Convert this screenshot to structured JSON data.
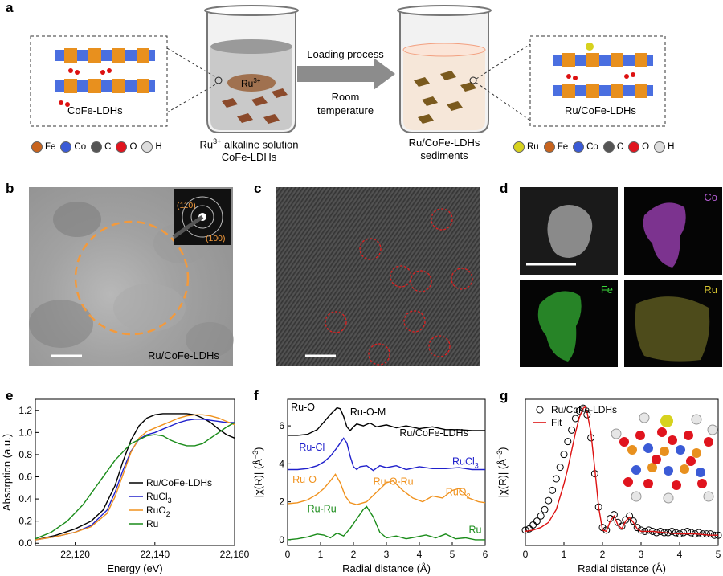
{
  "panel_labels": {
    "a": "a",
    "b": "b",
    "c": "c",
    "d": "d",
    "e": "e",
    "f": "f",
    "g": "g"
  },
  "panel_a": {
    "left_box_label": "CoFe-LDHs",
    "right_box_label": "Ru/CoFe-LDHs",
    "beaker1_ion": "Ru",
    "beaker1_ion_sup": "3+",
    "beaker1_caption_line1_pre": "Ru",
    "beaker1_caption_line1_sup": "3+",
    "beaker1_caption_line1_post": " alkaline solution",
    "beaker1_caption_line2": "CoFe-LDHs",
    "arrow_top": "Loading process",
    "arrow_bottom_line1": "Room",
    "arrow_bottom_line2": "temperature",
    "beaker2_caption_line1": "Ru/CoFe-LDHs",
    "beaker2_caption_line2": "sediments",
    "legend_left": [
      {
        "label": "Fe",
        "color": "#c8641e"
      },
      {
        "label": "Co",
        "color": "#3b5bd6"
      },
      {
        "label": "C",
        "color": "#555555"
      },
      {
        "label": "O",
        "color": "#e0141e"
      },
      {
        "label": "H",
        "color": "#dddddd"
      }
    ],
    "legend_right": [
      {
        "label": "Ru",
        "color": "#d7d21e"
      },
      {
        "label": "Fe",
        "color": "#c8641e"
      },
      {
        "label": "Co",
        "color": "#3b5bd6"
      },
      {
        "label": "C",
        "color": "#555555"
      },
      {
        "label": "O",
        "color": "#e0141e"
      },
      {
        "label": "H",
        "color": "#dddddd"
      }
    ]
  },
  "panel_b": {
    "caption": "Ru/CoFe-LDHs",
    "saed_1": "(110)",
    "saed_2": "(100)"
  },
  "panel_d": {
    "co": "Co",
    "fe": "Fe",
    "ru": "Ru"
  },
  "chart_data": [
    {
      "panel": "e",
      "type": "line",
      "xlabel": "Energy (eV)",
      "ylabel": "Absorption (a.u.)",
      "xlim": [
        22110,
        22160
      ],
      "ylim": [
        -0.02,
        1.3
      ],
      "xticks": [
        "22,120",
        "22,140",
        "22,160"
      ],
      "xtick_values": [
        22120,
        22140,
        22160
      ],
      "yticks": [
        "0.0",
        "0.2",
        "0.4",
        "0.6",
        "0.8",
        "1.0",
        "1.2"
      ],
      "ytick_values": [
        0,
        0.2,
        0.4,
        0.6,
        0.8,
        1.0,
        1.2
      ],
      "legend": "lower-right",
      "series": [
        {
          "name": "Ru/CoFe-LDHs",
          "color": "#000000",
          "x": [
            22110,
            22115,
            22120,
            22124,
            22127,
            22130,
            22132,
            22134,
            22136,
            22138,
            22140,
            22142,
            22144,
            22146,
            22148,
            22150,
            22152,
            22154,
            22156,
            22158,
            22160
          ],
          "y": [
            0.03,
            0.07,
            0.13,
            0.2,
            0.3,
            0.52,
            0.74,
            0.93,
            1.06,
            1.13,
            1.16,
            1.17,
            1.17,
            1.17,
            1.17,
            1.16,
            1.13,
            1.09,
            1.03,
            0.98,
            0.95
          ]
        },
        {
          "name": "RuCl3",
          "color": "#2020cc",
          "x": [
            22110,
            22115,
            22120,
            22124,
            22128,
            22130,
            22132,
            22134,
            22136,
            22138,
            22140,
            22142,
            22144,
            22146,
            22148,
            22150,
            22152,
            22154,
            22156,
            22158,
            22160
          ],
          "y": [
            0.03,
            0.06,
            0.1,
            0.16,
            0.3,
            0.46,
            0.66,
            0.83,
            0.94,
            0.98,
            1.0,
            1.03,
            1.06,
            1.09,
            1.11,
            1.12,
            1.12,
            1.11,
            1.1,
            1.09,
            1.09
          ]
        },
        {
          "name": "RuO2",
          "color": "#f0921e",
          "x": [
            22110,
            22115,
            22120,
            22124,
            22128,
            22130,
            22132,
            22134,
            22136,
            22138,
            22140,
            22142,
            22144,
            22146,
            22148,
            22150,
            22152,
            22154,
            22156,
            22158,
            22160
          ],
          "y": [
            0.03,
            0.06,
            0.1,
            0.15,
            0.27,
            0.42,
            0.62,
            0.82,
            0.95,
            1.01,
            1.04,
            1.07,
            1.1,
            1.13,
            1.15,
            1.16,
            1.16,
            1.15,
            1.13,
            1.1,
            1.07
          ]
        },
        {
          "name": "Ru",
          "color": "#1a8c1a",
          "x": [
            22110,
            22114,
            22118,
            22122,
            22126,
            22130,
            22134,
            22138,
            22140,
            22142,
            22144,
            22146,
            22148,
            22150,
            22152,
            22154,
            22156,
            22158,
            22160
          ],
          "y": [
            0.04,
            0.1,
            0.2,
            0.35,
            0.55,
            0.75,
            0.9,
            0.97,
            0.98,
            0.97,
            0.93,
            0.9,
            0.88,
            0.88,
            0.9,
            0.95,
            1.0,
            1.05,
            1.09
          ]
        }
      ],
      "legend_labels": [
        {
          "main": "Ru/CoFe-LDHs",
          "sub": ""
        },
        {
          "main": "RuCl",
          "sub": "3"
        },
        {
          "main": "RuO",
          "sub": "2"
        },
        {
          "main": "Ru",
          "sub": ""
        }
      ]
    },
    {
      "panel": "f",
      "type": "line",
      "xlabel": "Radial distance (Å)",
      "ylabel_pre": "|χ(R)| (Å",
      "ylabel_sup": "−3",
      "ylabel_post": ")",
      "xlim": [
        0,
        6
      ],
      "ylim": [
        -0.3,
        7.4
      ],
      "xticks": [
        "0",
        "1",
        "2",
        "3",
        "4",
        "5",
        "6"
      ],
      "xtick_values": [
        0,
        1,
        2,
        3,
        4,
        5,
        6
      ],
      "yticks": [
        "0",
        "2",
        "4",
        "6"
      ],
      "ytick_values": [
        0,
        2,
        4,
        6
      ],
      "series": [
        {
          "name": "Ru/CoFe-LDHs",
          "color": "#000000",
          "x": [
            0,
            0.3,
            0.6,
            0.9,
            1.1,
            1.3,
            1.5,
            1.6,
            1.7,
            1.8,
            1.9,
            2.0,
            2.1,
            2.3,
            2.5,
            2.7,
            3.0,
            3.3,
            3.6,
            4.0,
            4.4,
            4.8,
            5.2,
            5.6,
            6.0
          ],
          "y": [
            5.5,
            5.5,
            5.55,
            5.8,
            6.2,
            6.6,
            6.95,
            6.9,
            6.5,
            5.95,
            5.75,
            5.95,
            6.1,
            6.0,
            6.15,
            5.95,
            6.05,
            5.9,
            6.0,
            5.85,
            5.95,
            5.8,
            5.8,
            5.75,
            5.75
          ]
        },
        {
          "name": "RuCl3",
          "color": "#2020cc",
          "x": [
            0,
            0.3,
            0.6,
            0.9,
            1.1,
            1.3,
            1.5,
            1.6,
            1.7,
            1.8,
            1.9,
            2.0,
            2.1,
            2.2,
            2.4,
            2.6,
            2.8,
            3.0,
            3.3,
            3.6,
            4.0,
            4.4,
            4.8,
            5.2,
            5.6,
            6.0
          ],
          "y": [
            3.7,
            3.7,
            3.75,
            3.9,
            4.1,
            4.4,
            4.85,
            5.1,
            5.35,
            5.1,
            4.4,
            3.85,
            3.7,
            3.85,
            3.9,
            3.65,
            3.9,
            3.8,
            3.9,
            3.7,
            3.85,
            3.75,
            3.75,
            3.8,
            3.7,
            3.7
          ]
        },
        {
          "name": "RuO2",
          "color": "#f0921e",
          "x": [
            0,
            0.3,
            0.6,
            0.9,
            1.1,
            1.3,
            1.45,
            1.6,
            1.75,
            1.9,
            2.1,
            2.4,
            2.7,
            3.0,
            3.2,
            3.5,
            3.8,
            4.1,
            4.4,
            4.7,
            5.0,
            5.2,
            5.5,
            5.8,
            6.0
          ],
          "y": [
            1.9,
            1.95,
            2.1,
            2.4,
            2.7,
            3.1,
            3.45,
            3.0,
            2.3,
            1.95,
            1.85,
            2.0,
            2.5,
            3.0,
            3.1,
            2.6,
            2.2,
            2.0,
            2.3,
            2.2,
            2.6,
            2.7,
            2.2,
            2.0,
            1.95
          ]
        },
        {
          "name": "Ru",
          "color": "#1a8c1a",
          "x": [
            0,
            0.3,
            0.6,
            0.9,
            1.1,
            1.3,
            1.5,
            1.7,
            1.9,
            2.1,
            2.3,
            2.4,
            2.6,
            2.8,
            3.0,
            3.3,
            3.6,
            3.9,
            4.2,
            4.5,
            4.8,
            5.1,
            5.4,
            5.7,
            6.0
          ],
          "y": [
            0.0,
            0.05,
            0.15,
            0.3,
            0.25,
            0.1,
            0.35,
            0.2,
            0.6,
            1.1,
            1.6,
            1.75,
            1.2,
            0.4,
            0.1,
            0.2,
            0.05,
            0.15,
            0.25,
            0.1,
            0.3,
            0.05,
            0.1,
            0.0,
            0.0
          ]
        }
      ],
      "annotations": {
        "ru_o_top": "Ru-O",
        "ru_o_m": "Ru-O-M",
        "ldh_label": "Ru/CoFe-LDHs",
        "ru_cl": "Ru-Cl",
        "rucl3_main": "RuCl",
        "rucl3_sub": "3",
        "ru_o_orange": "Ru-O",
        "ru_o_ru": "Ru-O-Ru",
        "ruo2_main": "RuO",
        "ruo2_sub": "2",
        "ru_ru": "Ru-Ru",
        "ru_label": "Ru"
      }
    },
    {
      "panel": "g",
      "type": "scatter",
      "xlabel": "Radial distance (Å)",
      "ylabel_pre": "|χ(R)| (Å",
      "ylabel_sup": "−3",
      "ylabel_post": ")",
      "xlim": [
        0,
        5
      ],
      "ylim": [
        -0.1,
        5.6
      ],
      "xticks": [
        "0",
        "1",
        "2",
        "3",
        "4",
        "5"
      ],
      "xtick_values": [
        0,
        1,
        2,
        3,
        4,
        5
      ],
      "legend": "top-left",
      "series": [
        {
          "name": "Ru/CoFe-LDHs",
          "color": "#000000",
          "marker": "open-circle",
          "x": [
            0.0,
            0.1,
            0.2,
            0.3,
            0.4,
            0.5,
            0.6,
            0.7,
            0.8,
            0.9,
            1.0,
            1.1,
            1.2,
            1.3,
            1.4,
            1.5,
            1.6,
            1.7,
            1.8,
            1.9,
            2.0,
            2.1,
            2.2,
            2.3,
            2.4,
            2.5,
            2.6,
            2.7,
            2.8,
            2.9,
            3.0,
            3.1,
            3.2,
            3.3,
            3.4,
            3.5,
            3.6,
            3.7,
            3.8,
            3.9,
            4.0,
            4.1,
            4.2,
            4.3,
            4.4,
            4.5,
            4.6,
            4.7,
            4.8,
            4.9,
            5.0
          ],
          "y": [
            0.5,
            0.55,
            0.7,
            0.85,
            1.05,
            1.3,
            1.65,
            2.05,
            2.5,
            2.95,
            3.45,
            3.95,
            4.4,
            4.85,
            5.15,
            5.25,
            5.0,
            4.1,
            2.7,
            1.4,
            0.6,
            0.5,
            0.95,
            1.1,
            0.8,
            0.65,
            0.9,
            1.05,
            0.85,
            0.6,
            0.5,
            0.45,
            0.5,
            0.45,
            0.4,
            0.45,
            0.4,
            0.4,
            0.45,
            0.4,
            0.35,
            0.4,
            0.45,
            0.4,
            0.35,
            0.4,
            0.35,
            0.35,
            0.35,
            0.3,
            0.3
          ]
        },
        {
          "name": "Fit",
          "color": "#dd1111",
          "marker": "line",
          "x": [
            0.0,
            0.2,
            0.4,
            0.6,
            0.8,
            1.0,
            1.1,
            1.2,
            1.3,
            1.4,
            1.5,
            1.55,
            1.6,
            1.7,
            1.8,
            1.9,
            2.0,
            2.1,
            2.2,
            2.3,
            2.4,
            2.5,
            2.6,
            2.7,
            2.8,
            2.9,
            3.0,
            3.3,
            3.6,
            4.0,
            4.4,
            4.8,
            5.0
          ],
          "y": [
            0.45,
            0.5,
            0.6,
            0.8,
            1.3,
            2.3,
            2.9,
            3.6,
            4.3,
            4.9,
            5.25,
            5.3,
            5.1,
            4.3,
            2.9,
            1.4,
            0.5,
            0.45,
            0.85,
            1.05,
            0.7,
            0.55,
            0.85,
            1.0,
            0.8,
            0.55,
            0.45,
            0.45,
            0.4,
            0.35,
            0.35,
            0.3,
            0.3
          ]
        }
      ]
    }
  ]
}
